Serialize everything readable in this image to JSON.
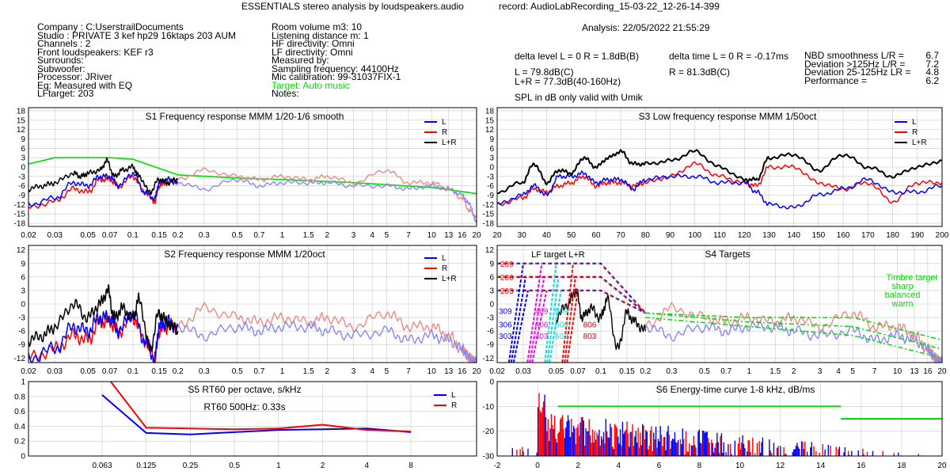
{
  "header": {
    "title": "ESSENTIALS stereo analysis by loudspeakers.audio",
    "record": "record: AudioLabRecording_15-03-22_12-26-14-399",
    "analysis": "Analysis: 22/05/2022 21:55:29"
  },
  "info_left": [
    "Company : C:UserstrailDocuments",
    "Studio : PRIVATE 3 kef hp29 16ktaps 203 AUM",
    "Channels : 2",
    "Front loudspeakers: KEF r3",
    "Surrounds:",
    "Subwoofer:",
    "Processor: JRiver",
    "Eq: Measured with EQ",
    "LFtarget: 203"
  ],
  "info_mid": [
    "Room volume m3: 10",
    "Listening distance m: 1",
    "HF directivity: Omni",
    "LF directivity: Omni",
    "Measured by:",
    "Sampling frequency: 44100Hz",
    "Mic calibration: 99-31037FIX-1",
    "Target: Auto music",
    "Notes:"
  ],
  "levels": {
    "delta_level": "delta level L = 0  R = 1.8dB(B)",
    "l_spl": "L =      79.8dB(C)",
    "lr_spl": "L+R = 77.3dB(40-160Hz)",
    "delta_time": "delta time  L = 0  R = -0.17ms",
    "r_spl": "R =      81.3dB(C)",
    "note": "SPL in dB only valid with Umik"
  },
  "scores": [
    {
      "label": "NBD smoothness L/R =",
      "value": "6.7"
    },
    {
      "label": "Deviation >125Hz L/R =",
      "value": "7.2"
    },
    {
      "label": "Deviation 25-125Hz LR =",
      "value": "4.8"
    },
    {
      "label": "Performance =",
      "value": "6.2"
    }
  ],
  "colors": {
    "L": "#0000ff",
    "R": "#ff0000",
    "LR": "#000000",
    "target": "#00dd00",
    "L_light": "#8888ee",
    "R_light": "#ee8888",
    "magenta": "#ee00ee",
    "cyan": "#00e0e0"
  },
  "chart_data": [
    {
      "id": "S1",
      "type": "line",
      "title": "S1  Frequency response MMM 1/20-1/6 smooth",
      "x_scale": "log",
      "x_unit": "kHz",
      "xlim": [
        0.02,
        20
      ],
      "ylim": [
        -19,
        19
      ],
      "x_ticks": [
        "0.02",
        "0.03",
        "0.05",
        "0.07",
        "0.1",
        "0.15",
        "0.2",
        "0.3",
        "0.5",
        "0.7",
        "1",
        "1.5",
        "2",
        "3",
        "4",
        "5",
        "7",
        "10",
        "13",
        "16",
        "20"
      ],
      "y_ticks": [
        18,
        15,
        12,
        9,
        6,
        3,
        0,
        -3,
        -6,
        -9,
        -12,
        -15,
        -18
      ],
      "legend": [
        "L",
        "R",
        "L+R"
      ],
      "series": [
        {
          "name": "target",
          "x": [
            0.02,
            0.03,
            0.07,
            0.1,
            0.2,
            0.5,
            1,
            3,
            10,
            20
          ],
          "y": [
            1,
            3,
            3,
            2.5,
            -2.5,
            -3.5,
            -4,
            -5,
            -6.5,
            -8.5
          ]
        },
        {
          "name": "L+R",
          "x": [
            0.02,
            0.025,
            0.03,
            0.04,
            0.045,
            0.05,
            0.06,
            0.067,
            0.075,
            0.085,
            0.1,
            0.11,
            0.13,
            0.15,
            0.17,
            0.2
          ],
          "y": [
            -7,
            -6,
            -5,
            -2,
            -3,
            -2,
            -1,
            2,
            -3,
            -1,
            0,
            -3,
            -8,
            -4,
            -5,
            -4
          ]
        },
        {
          "name": "L",
          "x": [
            0.02,
            0.03,
            0.04,
            0.05,
            0.06,
            0.07,
            0.08,
            0.1,
            0.12,
            0.14,
            0.15,
            0.17,
            0.2,
            0.3,
            0.5,
            0.7,
            1,
            1.5,
            2,
            3,
            5,
            7,
            10,
            13,
            16,
            18,
            20
          ],
          "y": [
            -12,
            -10,
            -5,
            -6,
            -3,
            -3,
            -6,
            -2,
            -8,
            -10,
            -5,
            -4,
            -5,
            -7,
            -4,
            -6,
            -5,
            -5,
            -5,
            -6,
            -6,
            -7,
            -6,
            -7,
            -9,
            -12,
            -18
          ]
        },
        {
          "name": "R",
          "x": [
            0.02,
            0.03,
            0.04,
            0.05,
            0.06,
            0.07,
            0.08,
            0.1,
            0.12,
            0.14,
            0.15,
            0.17,
            0.2,
            0.3,
            0.5,
            0.7,
            1,
            1.5,
            2,
            3,
            5,
            7,
            10,
            13,
            16,
            18,
            20
          ],
          "y": [
            -13,
            -11,
            -7,
            -8,
            -4,
            -4,
            -6,
            -3,
            -8,
            -11,
            -6,
            -5,
            -4,
            -1,
            -3,
            -4,
            -3,
            -4,
            -3,
            -5,
            -1,
            -5,
            -5,
            -7,
            -10,
            -14,
            -16
          ]
        }
      ]
    },
    {
      "id": "S3",
      "type": "line",
      "title": "S3  Low frequency response MMM 1/50oct",
      "x_scale": "linear",
      "x_unit": "Hz",
      "xlim": [
        20,
        200
      ],
      "ylim": [
        -19,
        19
      ],
      "x_ticks": [
        "20",
        "30",
        "40",
        "50",
        "60",
        "70",
        "80",
        "90",
        "100",
        "110",
        "120",
        "130",
        "140",
        "150",
        "160",
        "170",
        "180",
        "190",
        "200"
      ],
      "y_ticks": [
        18,
        15,
        12,
        9,
        6,
        3,
        0,
        -3,
        -6,
        -9,
        -12,
        -15,
        -18
      ],
      "legend": [
        "L",
        "R",
        "L+R"
      ],
      "series": [
        {
          "name": "L",
          "x": [
            20,
            30,
            35,
            40,
            45,
            50,
            55,
            60,
            65,
            70,
            75,
            80,
            90,
            100,
            110,
            120,
            125,
            130,
            140,
            150,
            160,
            170,
            180,
            190,
            200
          ],
          "y": [
            -12,
            -9,
            -6,
            -9,
            -3,
            -3,
            -2,
            -5,
            -4,
            -4,
            -7,
            -4,
            -3,
            -3,
            -5,
            -5,
            -8,
            -12,
            -13,
            -9,
            -7,
            -4,
            -8,
            -8,
            -6
          ]
        },
        {
          "name": "R",
          "x": [
            20,
            30,
            35,
            40,
            45,
            50,
            55,
            60,
            65,
            70,
            75,
            80,
            90,
            100,
            110,
            120,
            125,
            130,
            140,
            150,
            160,
            170,
            180,
            190,
            200
          ],
          "y": [
            -12,
            -10,
            -7,
            -8,
            -6,
            -5,
            -3,
            -6,
            -5,
            -5,
            -6,
            -5,
            -3,
            1,
            -3,
            -5,
            -6,
            0,
            0,
            -5,
            -7,
            -5,
            -11,
            -5,
            -5
          ]
        },
        {
          "name": "L+R",
          "x": [
            20,
            30,
            35,
            40,
            45,
            50,
            55,
            60,
            65,
            70,
            75,
            80,
            90,
            100,
            110,
            120,
            125,
            130,
            140,
            150,
            160,
            170,
            180,
            190,
            200
          ],
          "y": [
            -8,
            -5,
            1,
            -5,
            -1,
            -2,
            3,
            0,
            3,
            5,
            1,
            1,
            2,
            5,
            0,
            -4,
            -4,
            3,
            4,
            -1,
            4,
            0,
            -3,
            0,
            2
          ]
        }
      ]
    },
    {
      "id": "S2",
      "type": "line",
      "title": "S2  Frequency response MMM 1/20oct",
      "x_scale": "log",
      "x_unit": "kHz",
      "xlim": [
        0.02,
        20
      ],
      "ylim": [
        -13,
        13
      ],
      "x_ticks": [
        "0.02",
        "0.03",
        "0.05",
        "0.07",
        "0.1",
        "0.15",
        "0.2",
        "0.3",
        "0.5",
        "0.7",
        "1",
        "1.5",
        "2",
        "3",
        "4",
        "5",
        "7",
        "10",
        "13",
        "16",
        "20"
      ],
      "y_ticks": [
        12,
        9,
        6,
        3,
        0,
        -3,
        -6,
        -9,
        -12
      ],
      "legend": [
        "L",
        "R",
        "L+R"
      ],
      "series": [
        {
          "name": "L+R",
          "x": [
            0.02,
            0.025,
            0.03,
            0.04,
            0.05,
            0.06,
            0.068,
            0.075,
            0.085,
            0.1,
            0.11,
            0.13,
            0.15,
            0.17,
            0.2
          ],
          "y": [
            -8,
            -7,
            -5,
            0,
            -3,
            0,
            3,
            -3,
            -1,
            -3,
            1,
            -10,
            -2,
            -4,
            -6
          ]
        },
        {
          "name": "L",
          "x": [
            0.02,
            0.03,
            0.04,
            0.05,
            0.06,
            0.07,
            0.08,
            0.1,
            0.12,
            0.14,
            0.15,
            0.17,
            0.2,
            0.3,
            0.5,
            0.7,
            1,
            1.5,
            2,
            3,
            5,
            7,
            10,
            13,
            16,
            18,
            20
          ],
          "y": [
            -12,
            -10,
            -5,
            -6,
            -3,
            -3,
            -6,
            -2,
            -8,
            -12,
            -5,
            -4,
            -5,
            -7,
            -5,
            -6,
            -5,
            -5,
            -6,
            -7,
            -6,
            -8,
            -7,
            -8,
            -10,
            -12,
            -13
          ]
        },
        {
          "name": "R",
          "x": [
            0.02,
            0.03,
            0.04,
            0.05,
            0.06,
            0.07,
            0.08,
            0.1,
            0.12,
            0.14,
            0.15,
            0.17,
            0.2,
            0.3,
            0.5,
            0.7,
            1,
            1.5,
            2,
            3,
            5,
            7,
            10,
            13,
            16,
            18,
            20
          ],
          "y": [
            -12,
            -10,
            -7,
            -8,
            -4,
            -4,
            -6,
            -3,
            -8,
            -12,
            -6,
            -5,
            -5,
            -1,
            -3,
            -4,
            -3,
            -4,
            -3,
            -5,
            -2,
            -5,
            -5,
            -7,
            -10,
            -12,
            -13
          ]
        }
      ]
    },
    {
      "id": "S4",
      "type": "line",
      "title": "S4 Targets",
      "x_scale": "log",
      "x_unit": "kHz",
      "xlim": [
        0.02,
        20
      ],
      "ylim": [
        -13,
        13
      ],
      "x_ticks": [
        "0.02",
        "0.03",
        "0.05",
        "0.07",
        "0.1",
        "0.15",
        "0.2",
        "0.3",
        "0.5",
        "0.7",
        "1",
        "1.5",
        "2",
        "3",
        "4",
        "5",
        "7",
        "10",
        "13",
        "16",
        "20"
      ],
      "y_ticks": [
        12,
        9,
        6,
        3,
        0,
        -3,
        -6,
        -9,
        -12
      ],
      "lf_title": "LF target L+R",
      "lf_labels": {
        "red": [
          "209",
          "206",
          "203"
        ],
        "blue": [
          "309",
          "306",
          "303"
        ],
        "magenta": [
          "409",
          "406",
          "403"
        ],
        "cyan": [
          "609",
          "606",
          "603"
        ],
        "darkred": [
          "806",
          "803"
        ]
      },
      "timbre_labels": [
        "Timbre target",
        "sharp",
        "balanced",
        "warm"
      ],
      "series": [
        {
          "name": "LF 209",
          "x": [
            0.02,
            0.1,
            0.2
          ],
          "y": [
            9,
            9,
            -2
          ]
        },
        {
          "name": "LF 206",
          "x": [
            0.02,
            0.1,
            0.2
          ],
          "y": [
            6,
            6,
            -2
          ]
        },
        {
          "name": "LF 203",
          "x": [
            0.02,
            0.1,
            0.2
          ],
          "y": [
            3,
            3,
            -2
          ]
        },
        {
          "name": "sharp",
          "x": [
            0.2,
            1,
            5,
            20
          ],
          "y": [
            -2,
            -3,
            -3,
            -8
          ]
        },
        {
          "name": "balanced",
          "x": [
            0.2,
            1,
            5,
            20
          ],
          "y": [
            -2,
            -4,
            -5,
            -10
          ]
        },
        {
          "name": "warm",
          "x": [
            0.2,
            1,
            5,
            20
          ],
          "y": [
            -3,
            -5,
            -7,
            -12
          ]
        }
      ]
    },
    {
      "id": "S5",
      "type": "line",
      "title": "S5  RT60 per octave, s/kHz",
      "annotation": "RT60 500Hz: 0.33s",
      "x_ticks": [
        "0.063",
        "0.125",
        "0.25",
        "0.5",
        "1",
        "2",
        "4",
        "8"
      ],
      "y_ticks": [
        "1",
        "0.8",
        "0.6",
        "0.4",
        "0.2",
        "0"
      ],
      "ylim": [
        0,
        1
      ],
      "legend": [
        "L",
        "R"
      ],
      "series": [
        {
          "name": "L",
          "values": [
            0.82,
            0.31,
            0.29,
            0.32,
            0.35,
            0.36,
            0.37,
            0.32
          ]
        },
        {
          "name": "R",
          "values": [
            1.15,
            0.38,
            0.37,
            0.36,
            0.37,
            0.42,
            0.35,
            0.33
          ]
        }
      ]
    },
    {
      "id": "S6",
      "type": "bar",
      "title": "S6  Energy-time curve 1-8 kHz, dB/ms",
      "x_unit": "ms",
      "xlim": [
        -2,
        20
      ],
      "ylim": [
        -30,
        0
      ],
      "x_ticks": [
        "-2",
        "0",
        "2",
        "4",
        "6",
        "8",
        "10",
        "12",
        "14",
        "16",
        "18",
        "20"
      ],
      "y_ticks": [
        "0",
        "-10",
        "-20",
        "-30"
      ],
      "target": [
        {
          "x": [
            1,
            15
          ],
          "y": -10
        },
        {
          "x": [
            15,
            20
          ],
          "y": -15
        }
      ]
    }
  ]
}
